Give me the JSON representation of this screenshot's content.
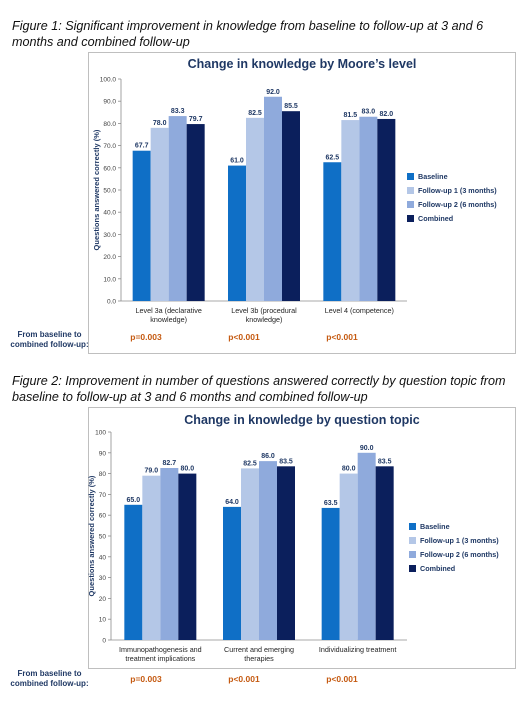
{
  "figure1": {
    "caption": "Figure 1: Significant improvement in knowledge from baseline to follow-up at 3 and 6 months and combined follow-up",
    "row_label": "From baseline to combined follow-up:",
    "p_values": [
      "p=0.003",
      "p<0.001",
      "p<0.001"
    ]
  },
  "figure2": {
    "caption": "Figure 2: Improvement in number of questions answered correctly by question topic from baseline to follow-up at 3 and 6 months and combined follow-up",
    "row_label": "From baseline to combined follow-up:",
    "p_values": [
      "p=0.003",
      "p<0.001",
      "p<0.001"
    ]
  },
  "colors": {
    "baseline": "#0f6fc6",
    "followup1": "#b4c7e7",
    "followup2": "#8faadc",
    "combined": "#0b1f5c",
    "label": "#1f3864",
    "pvalue": "#c55a11"
  },
  "chart_data": [
    {
      "type": "bar",
      "title": "Change in knowledge by Moore’s level",
      "ylabel": "Questions answered correctly (%)",
      "xlabel": "",
      "categories": [
        "Level 3a (declarative knowledge)",
        "Level 3b (procedural knowledge)",
        "Level 4 (competence)"
      ],
      "series": [
        {
          "name": "Baseline",
          "values": [
            67.7,
            61.0,
            62.5
          ]
        },
        {
          "name": "Follow-up 1 (3 months)",
          "values": [
            78.0,
            82.5,
            81.5
          ]
        },
        {
          "name": "Follow-up 2 (6 months)",
          "values": [
            83.3,
            92.0,
            83.0
          ]
        },
        {
          "name": "Combined",
          "values": [
            79.7,
            85.5,
            82.0
          ]
        }
      ],
      "ylim": [
        0,
        100
      ],
      "yticks": [
        "0.0",
        "10.0",
        "20.0",
        "30.0",
        "40.0",
        "50.0",
        "60.0",
        "70.0",
        "80.0",
        "90.0",
        "100.0"
      ],
      "value_labels": [
        [
          "67.7",
          "78.0",
          "83.3",
          "79.7"
        ],
        [
          "61.0",
          "82.5",
          "92.0",
          "85.5"
        ],
        [
          "62.5",
          "81.5",
          "83.0",
          "82.0"
        ]
      ],
      "grid": false,
      "legend": "right"
    },
    {
      "type": "bar",
      "title": "Change in knowledge by question topic",
      "ylabel": "Questions answered correctly (%)",
      "xlabel": "",
      "categories": [
        "Immunopathogenesis and treatment implications",
        "Current and emerging therapies",
        "Individualizing treatment"
      ],
      "series": [
        {
          "name": "Baseline",
          "values": [
            65.0,
            64.0,
            63.5
          ]
        },
        {
          "name": "Follow-up 1 (3 months)",
          "values": [
            79.0,
            82.5,
            80.0
          ]
        },
        {
          "name": "Follow-up 2 (6 months)",
          "values": [
            82.7,
            86.0,
            90.0
          ]
        },
        {
          "name": "Combined",
          "values": [
            80.0,
            83.5,
            83.5
          ]
        }
      ],
      "ylim": [
        0,
        100
      ],
      "yticks": [
        "0",
        "10",
        "20",
        "30",
        "40",
        "50",
        "60",
        "70",
        "80",
        "90",
        "100"
      ],
      "value_labels": [
        [
          "65.0",
          "79.0",
          "82.7",
          "80.0"
        ],
        [
          "64.0",
          "82.5",
          "86.0",
          "83.5"
        ],
        [
          "63.5",
          "80.0",
          "90.0",
          "83.5"
        ]
      ],
      "grid": false,
      "legend": "right"
    }
  ]
}
